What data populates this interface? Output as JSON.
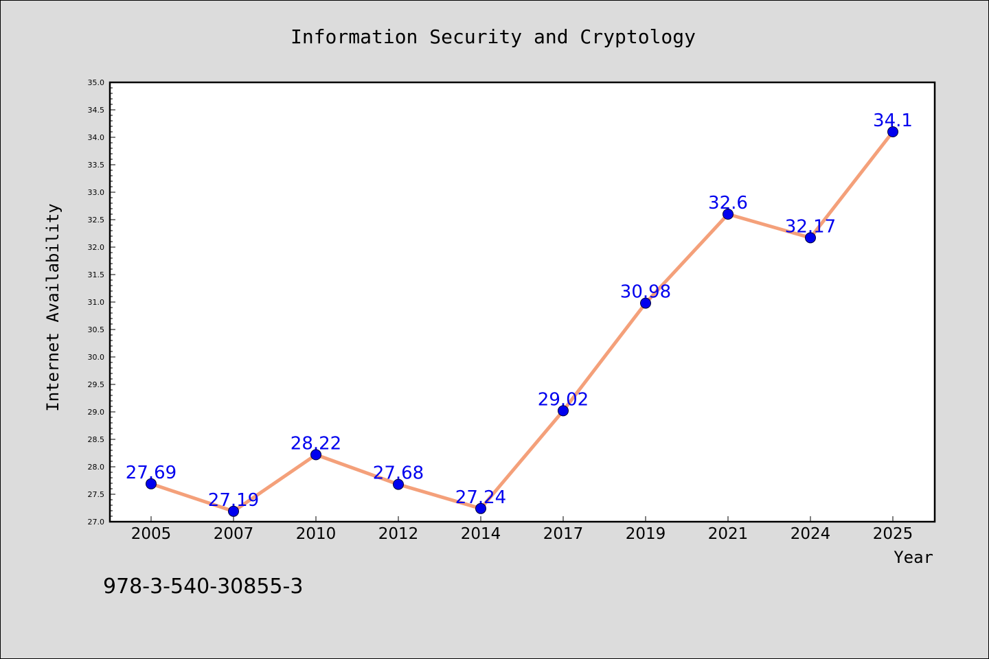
{
  "chart_data": {
    "type": "line",
    "title": "Information Security and Cryptology",
    "xlabel": "Year",
    "ylabel": "Internet Availability",
    "categories": [
      "2005",
      "2007",
      "2010",
      "2012",
      "2014",
      "2017",
      "2019",
      "2021",
      "2024",
      "2025"
    ],
    "series": [
      {
        "values": [
          27.69,
          27.19,
          28.22,
          27.68,
          27.24,
          29.02,
          30.98,
          32.6,
          32.17,
          34.1
        ],
        "labels": [
          "27.69",
          "27.19",
          "28.22",
          "27.68",
          "27.24",
          "29.02",
          "30.98",
          "32.6",
          "32.17",
          "34.1"
        ]
      }
    ],
    "ylim": [
      27.0,
      35.0
    ],
    "yticks": [
      "27.0",
      "27.5",
      "28.0",
      "28.5",
      "29.0",
      "29.5",
      "30.0",
      "30.5",
      "31.0",
      "31.5",
      "32.0",
      "32.5",
      "33.0",
      "33.5",
      "34.0",
      "34.5",
      "35.0"
    ],
    "grid": false,
    "legend": "none",
    "line_color": "#f4a07a",
    "marker_color": "#0000ee",
    "label_color": "#0000ee",
    "annotation": "978-3-540-30855-3"
  }
}
